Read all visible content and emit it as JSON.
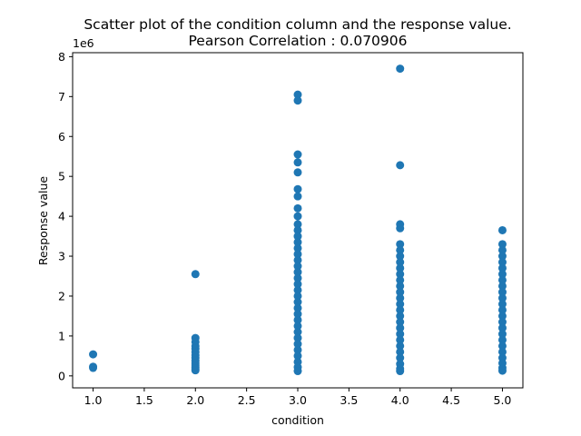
{
  "chart_data": {
    "type": "scatter",
    "title": "Scatter plot of the condition column and the response value.",
    "subtitle": "Pearson Correlation : 0.070906",
    "xlabel": "condition",
    "ylabel": "Response value",
    "y_scale_label": "1e6",
    "xlim": [
      0.8,
      5.2
    ],
    "ylim": [
      -0.3,
      8.1
    ],
    "x_ticks": [
      1.0,
      1.5,
      2.0,
      2.5,
      3.0,
      3.5,
      4.0,
      4.5,
      5.0
    ],
    "x_tick_labels": [
      "1.0",
      "1.5",
      "2.0",
      "2.5",
      "3.0",
      "3.5",
      "4.0",
      "4.5",
      "5.0"
    ],
    "y_ticks": [
      0,
      1,
      2,
      3,
      4,
      5,
      6,
      7,
      8
    ],
    "y_tick_labels": [
      "0",
      "1",
      "2",
      "3",
      "4",
      "5",
      "6",
      "7",
      "8"
    ],
    "grid": false,
    "marker_color": "#1f77b4",
    "series": [
      {
        "name": "",
        "points": [
          [
            1,
            0.54
          ],
          [
            1,
            0.23
          ],
          [
            1,
            0.2
          ],
          [
            2,
            2.55
          ],
          [
            2,
            0.95
          ],
          [
            2,
            0.85
          ],
          [
            2,
            0.75
          ],
          [
            2,
            0.68
          ],
          [
            2,
            0.6
          ],
          [
            2,
            0.52
          ],
          [
            2,
            0.45
          ],
          [
            2,
            0.38
          ],
          [
            2,
            0.32
          ],
          [
            2,
            0.27
          ],
          [
            2,
            0.22
          ],
          [
            2,
            0.18
          ],
          [
            2,
            0.14
          ],
          [
            3,
            7.05
          ],
          [
            3,
            6.9
          ],
          [
            3,
            5.55
          ],
          [
            3,
            5.35
          ],
          [
            3,
            5.1
          ],
          [
            3,
            4.68
          ],
          [
            3,
            4.5
          ],
          [
            3,
            4.2
          ],
          [
            3,
            4.0
          ],
          [
            3,
            3.8
          ],
          [
            3,
            3.65
          ],
          [
            3,
            3.5
          ],
          [
            3,
            3.35
          ],
          [
            3,
            3.2
          ],
          [
            3,
            3.05
          ],
          [
            3,
            2.9
          ],
          [
            3,
            2.75
          ],
          [
            3,
            2.6
          ],
          [
            3,
            2.45
          ],
          [
            3,
            2.3
          ],
          [
            3,
            2.15
          ],
          [
            3,
            2.0
          ],
          [
            3,
            1.85
          ],
          [
            3,
            1.7
          ],
          [
            3,
            1.55
          ],
          [
            3,
            1.4
          ],
          [
            3,
            1.25
          ],
          [
            3,
            1.1
          ],
          [
            3,
            0.95
          ],
          [
            3,
            0.8
          ],
          [
            3,
            0.65
          ],
          [
            3,
            0.5
          ],
          [
            3,
            0.35
          ],
          [
            3,
            0.22
          ],
          [
            3,
            0.12
          ],
          [
            4,
            7.7
          ],
          [
            4,
            5.28
          ],
          [
            4,
            3.8
          ],
          [
            4,
            3.7
          ],
          [
            4,
            3.3
          ],
          [
            4,
            3.15
          ],
          [
            4,
            3.0
          ],
          [
            4,
            2.85
          ],
          [
            4,
            2.7
          ],
          [
            4,
            2.55
          ],
          [
            4,
            2.4
          ],
          [
            4,
            2.25
          ],
          [
            4,
            2.1
          ],
          [
            4,
            1.95
          ],
          [
            4,
            1.8
          ],
          [
            4,
            1.65
          ],
          [
            4,
            1.5
          ],
          [
            4,
            1.35
          ],
          [
            4,
            1.2
          ],
          [
            4,
            1.05
          ],
          [
            4,
            0.9
          ],
          [
            4,
            0.75
          ],
          [
            4,
            0.6
          ],
          [
            4,
            0.45
          ],
          [
            4,
            0.3
          ],
          [
            4,
            0.18
          ],
          [
            4,
            0.12
          ],
          [
            5,
            3.65
          ],
          [
            5,
            3.3
          ],
          [
            5,
            3.15
          ],
          [
            5,
            3.0
          ],
          [
            5,
            2.85
          ],
          [
            5,
            2.7
          ],
          [
            5,
            2.55
          ],
          [
            5,
            2.4
          ],
          [
            5,
            2.25
          ],
          [
            5,
            2.1
          ],
          [
            5,
            1.95
          ],
          [
            5,
            1.8
          ],
          [
            5,
            1.65
          ],
          [
            5,
            1.5
          ],
          [
            5,
            1.35
          ],
          [
            5,
            1.2
          ],
          [
            5,
            1.05
          ],
          [
            5,
            0.9
          ],
          [
            5,
            0.75
          ],
          [
            5,
            0.6
          ],
          [
            5,
            0.45
          ],
          [
            5,
            0.32
          ],
          [
            5,
            0.2
          ],
          [
            5,
            0.13
          ]
        ]
      }
    ]
  }
}
